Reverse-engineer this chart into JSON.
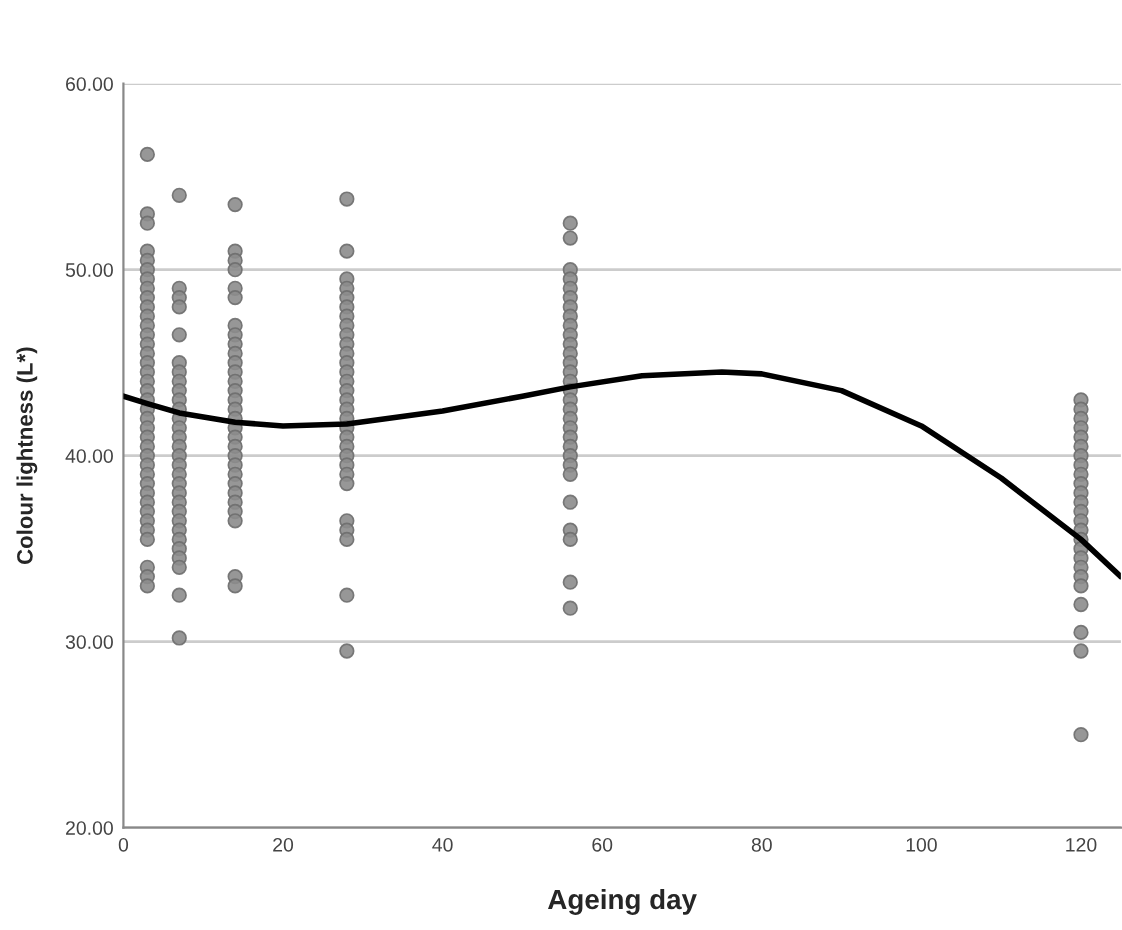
{
  "chart_data": {
    "type": "scatter",
    "xlabel": "Ageing day",
    "ylabel": "Colour lightness (L*)",
    "xlim": [
      0,
      125
    ],
    "xticks": [
      0,
      20,
      40,
      60,
      80,
      100,
      120
    ],
    "ylim": [
      20,
      60
    ],
    "yticks": [
      {
        "value": 20,
        "label": "20.00"
      },
      {
        "value": 30,
        "label": "30.00"
      },
      {
        "value": 40,
        "label": "40.00"
      },
      {
        "value": 50,
        "label": "50.00"
      },
      {
        "value": 60,
        "label": "60.00"
      }
    ],
    "grid": "y",
    "series": [
      {
        "color": "#8c8c8c",
        "marker": "circle",
        "x": [
          3,
          3,
          3,
          3,
          3,
          3,
          3,
          3,
          3,
          3,
          3,
          3,
          3,
          3,
          3,
          3,
          3,
          3,
          3,
          3,
          3,
          3,
          3,
          3,
          3,
          3,
          3,
          3,
          3,
          3,
          3,
          3,
          3,
          3,
          3,
          3,
          3,
          3,
          7,
          7,
          7,
          7,
          7,
          7,
          7,
          7,
          7,
          7,
          7,
          7,
          7,
          7,
          7,
          7,
          7,
          7,
          7,
          7,
          7,
          7,
          7,
          7,
          7,
          7,
          7,
          7,
          7,
          7,
          14,
          14,
          14,
          14,
          14,
          14,
          14,
          14,
          14,
          14,
          14,
          14,
          14,
          14,
          14,
          14,
          14,
          14,
          14,
          14,
          14,
          14,
          14,
          14,
          14,
          14,
          14,
          14,
          14,
          14,
          28,
          28,
          28,
          28,
          28,
          28,
          28,
          28,
          28,
          28,
          28,
          28,
          28,
          28,
          28,
          28,
          28,
          28,
          28,
          28,
          28,
          28,
          28,
          28,
          28,
          28,
          28,
          28,
          28,
          28,
          56,
          56,
          56,
          56,
          56,
          56,
          56,
          56,
          56,
          56,
          56,
          56,
          56,
          56,
          56,
          56,
          56,
          56,
          56,
          56,
          56,
          56,
          56,
          56,
          56,
          56,
          56,
          56,
          56,
          56,
          120,
          120,
          120,
          120,
          120,
          120,
          120,
          120,
          120,
          120,
          120,
          120,
          120,
          120,
          120,
          120,
          120,
          120,
          120,
          120,
          120,
          120,
          120,
          120,
          120
        ],
        "values": [
          56.2,
          53,
          52.5,
          51,
          50.5,
          50,
          49.5,
          49,
          48.5,
          48,
          47.5,
          47,
          46.5,
          46,
          45.5,
          45,
          44.5,
          44,
          43.5,
          43,
          42.5,
          42,
          41.5,
          41,
          40.5,
          40,
          39.5,
          39,
          38.5,
          38,
          37.5,
          37,
          36.5,
          36,
          35.5,
          34,
          33.5,
          33,
          54,
          49,
          48.5,
          48,
          46.5,
          45,
          44.5,
          44,
          43.5,
          43,
          42.5,
          42,
          41.5,
          41,
          40.5,
          40,
          39.5,
          39,
          38.5,
          38,
          37.5,
          37,
          36.5,
          36,
          35.5,
          35,
          34.5,
          34,
          32.5,
          30.2,
          53.5,
          51,
          50.5,
          50,
          49,
          48.5,
          47,
          46.5,
          46,
          45.5,
          45,
          44.5,
          44,
          43.5,
          43,
          42.5,
          42,
          41.5,
          41,
          40.5,
          40,
          39.5,
          39,
          38.5,
          38,
          37.5,
          37,
          36.5,
          33.5,
          33,
          53.8,
          51,
          49.5,
          49,
          48.5,
          48,
          47.5,
          47,
          46.5,
          46,
          45.5,
          45,
          44.5,
          44,
          43.5,
          43,
          42.5,
          42,
          41.5,
          41,
          40.5,
          40,
          39.5,
          39,
          38.5,
          36.5,
          36,
          35.5,
          32.5,
          29.5,
          52.5,
          51.7,
          50,
          49.5,
          49,
          48.5,
          48,
          47.5,
          47,
          46.5,
          46,
          45.5,
          45,
          44.5,
          44,
          43.5,
          43,
          42.5,
          42,
          41.5,
          41,
          40.5,
          40,
          39.5,
          39,
          37.5,
          36,
          35.5,
          33.2,
          31.8,
          43,
          42.5,
          42,
          41.5,
          41,
          40.5,
          40,
          39.5,
          39,
          38.5,
          38,
          37.5,
          37,
          36.5,
          36,
          35.5,
          35,
          34.5,
          34,
          33.5,
          33,
          32,
          30.5,
          29.5,
          25
        ]
      },
      {
        "type": "line",
        "color": "#000000",
        "marker": "none",
        "line_style": "solid",
        "x": [
          0,
          3,
          7,
          14,
          20,
          28,
          40,
          50,
          56,
          65,
          75,
          80,
          90,
          100,
          110,
          120,
          125
        ],
        "values": [
          43.2,
          42.8,
          42.3,
          41.8,
          41.6,
          41.7,
          42.4,
          43.2,
          43.7,
          44.3,
          44.5,
          44.4,
          43.5,
          41.6,
          38.8,
          35.5,
          33.5
        ]
      }
    ]
  }
}
